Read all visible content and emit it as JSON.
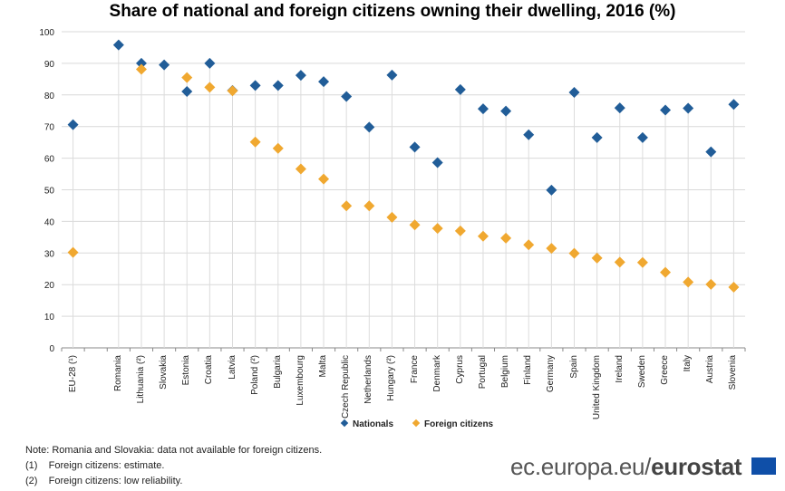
{
  "chart_data": {
    "type": "scatter",
    "title": "Share of national and foreign citizens owning their dwelling, 2016 (%)",
    "xlabel": "",
    "ylabel": "",
    "ylim": [
      0,
      100
    ],
    "yticks": [
      "0",
      "10",
      "20",
      "30",
      "40",
      "50",
      "60",
      "70",
      "80",
      "90",
      "100"
    ],
    "grid": true,
    "legend_position": "bottom",
    "categories": [
      "EU-28 (¹)",
      "Romania",
      "Lithuania (²)",
      "Slovakia",
      "Estonia",
      "Croatia",
      "Latvia",
      "Poland (²)",
      "Bulgaria",
      "Luxembourg",
      "Malta",
      "Czech Republic",
      "Netherlands",
      "Hungary (²)",
      "France",
      "Denmark",
      "Cyprus",
      "Portugal",
      "Belgium",
      "Finland",
      "Germany",
      "Spain",
      "United Kingdom",
      "Ireland",
      "Sweden",
      "Greece",
      "Italy",
      "Austria",
      "Slovenia"
    ],
    "series": [
      {
        "name": "Nationals",
        "color": "#215d98",
        "values": [
          70.6,
          95.8,
          90.0,
          89.5,
          81.1,
          90.0,
          81.4,
          83.0,
          83.0,
          86.2,
          84.2,
          79.5,
          69.8,
          86.3,
          63.5,
          58.6,
          81.7,
          75.6,
          74.9,
          67.4,
          49.9,
          80.8,
          66.5,
          75.9,
          66.5,
          75.2,
          75.8,
          62.0,
          77.0
        ]
      },
      {
        "name": "Foreign citizens",
        "color": "#f0a830",
        "values": [
          30.2,
          null,
          88.1,
          null,
          85.5,
          82.4,
          81.3,
          65.1,
          63.1,
          56.6,
          53.4,
          44.9,
          44.9,
          41.3,
          38.9,
          37.8,
          37.0,
          35.3,
          34.7,
          32.6,
          31.5,
          29.9,
          28.4,
          27.1,
          27.0,
          23.9,
          20.8,
          20.1,
          19.2
        ]
      }
    ]
  },
  "notes": [
    "Note:  Romania and Slovakia: data not available for foreign citizens.",
    "(1)    Foreign citizens: estimate.",
    "(2)    Foreign citizens: low reliability."
  ],
  "logo": {
    "prefix": "ec.europa.eu/",
    "brand": "eurostat"
  }
}
